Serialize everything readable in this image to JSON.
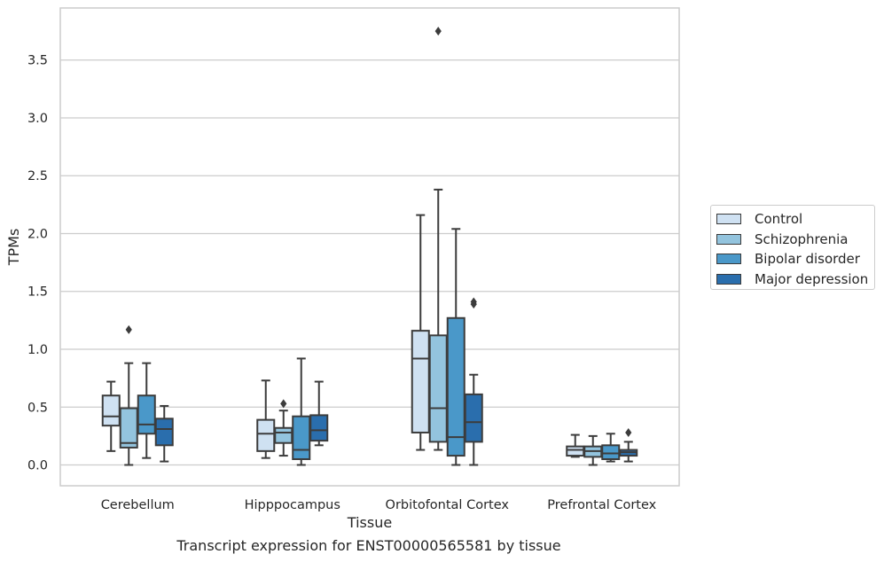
{
  "chart_data": {
    "type": "box",
    "xlabel": "Tissue",
    "ylabel": "TPMs",
    "caption": "Transcript expression for ENST00000565581 by tissue",
    "ylim": [
      -0.18,
      3.95
    ],
    "yticks": [
      0.0,
      0.5,
      1.0,
      1.5,
      2.0,
      2.5,
      3.0,
      3.5
    ],
    "ytick_labels": [
      "0.0",
      "0.5",
      "1.0",
      "1.5",
      "2.0",
      "2.5",
      "3.0",
      "3.5"
    ],
    "categories": [
      "Cerebellum",
      "Hipppocampus",
      "Orbitofontal Cortex",
      "Prefrontal Cortex"
    ],
    "grid": "horizontal",
    "legend_position": "right",
    "series": [
      {
        "name": "Control",
        "color": "#cfe1f2",
        "boxes": [
          {
            "whislo": 0.12,
            "q1": 0.34,
            "med": 0.42,
            "q3": 0.6,
            "whishi": 0.72,
            "fliers": []
          },
          {
            "whislo": 0.06,
            "q1": 0.12,
            "med": 0.27,
            "q3": 0.39,
            "whishi": 0.73,
            "fliers": []
          },
          {
            "whislo": 0.13,
            "q1": 0.28,
            "med": 0.92,
            "q3": 1.16,
            "whishi": 2.16,
            "fliers": []
          },
          {
            "whislo": 0.07,
            "q1": 0.08,
            "med": 0.13,
            "q3": 0.16,
            "whishi": 0.26,
            "fliers": []
          }
        ]
      },
      {
        "name": "Schizophrenia",
        "color": "#93c4de",
        "boxes": [
          {
            "whislo": 0.0,
            "q1": 0.15,
            "med": 0.19,
            "q3": 0.49,
            "whishi": 0.88,
            "fliers": [
              1.17
            ]
          },
          {
            "whislo": 0.08,
            "q1": 0.19,
            "med": 0.28,
            "q3": 0.32,
            "whishi": 0.47,
            "fliers": [
              0.53
            ]
          },
          {
            "whislo": 0.13,
            "q1": 0.2,
            "med": 0.49,
            "q3": 1.12,
            "whishi": 2.38,
            "fliers": [
              3.75
            ]
          },
          {
            "whislo": 0.0,
            "q1": 0.07,
            "med": 0.12,
            "q3": 0.16,
            "whishi": 0.25,
            "fliers": []
          }
        ]
      },
      {
        "name": "Bipolar disorder",
        "color": "#4a98c9",
        "boxes": [
          {
            "whislo": 0.06,
            "q1": 0.27,
            "med": 0.35,
            "q3": 0.6,
            "whishi": 0.88,
            "fliers": []
          },
          {
            "whislo": 0.0,
            "q1": 0.05,
            "med": 0.13,
            "q3": 0.42,
            "whishi": 0.92,
            "fliers": []
          },
          {
            "whislo": 0.0,
            "q1": 0.08,
            "med": 0.24,
            "q3": 1.27,
            "whishi": 2.04,
            "fliers": []
          },
          {
            "whislo": 0.03,
            "q1": 0.05,
            "med": 0.1,
            "q3": 0.17,
            "whishi": 0.27,
            "fliers": []
          }
        ]
      },
      {
        "name": "Major depression",
        "color": "#2a6ead",
        "boxes": [
          {
            "whislo": 0.03,
            "q1": 0.17,
            "med": 0.31,
            "q3": 0.4,
            "whishi": 0.51,
            "fliers": []
          },
          {
            "whislo": 0.17,
            "q1": 0.21,
            "med": 0.3,
            "q3": 0.43,
            "whishi": 0.72,
            "fliers": []
          },
          {
            "whislo": 0.0,
            "q1": 0.2,
            "med": 0.37,
            "q3": 0.61,
            "whishi": 0.78,
            "fliers": [
              1.39,
              1.41
            ]
          },
          {
            "whislo": 0.03,
            "q1": 0.08,
            "med": 0.11,
            "q3": 0.13,
            "whishi": 0.2,
            "fliers": [
              0.28
            ]
          }
        ]
      }
    ]
  }
}
